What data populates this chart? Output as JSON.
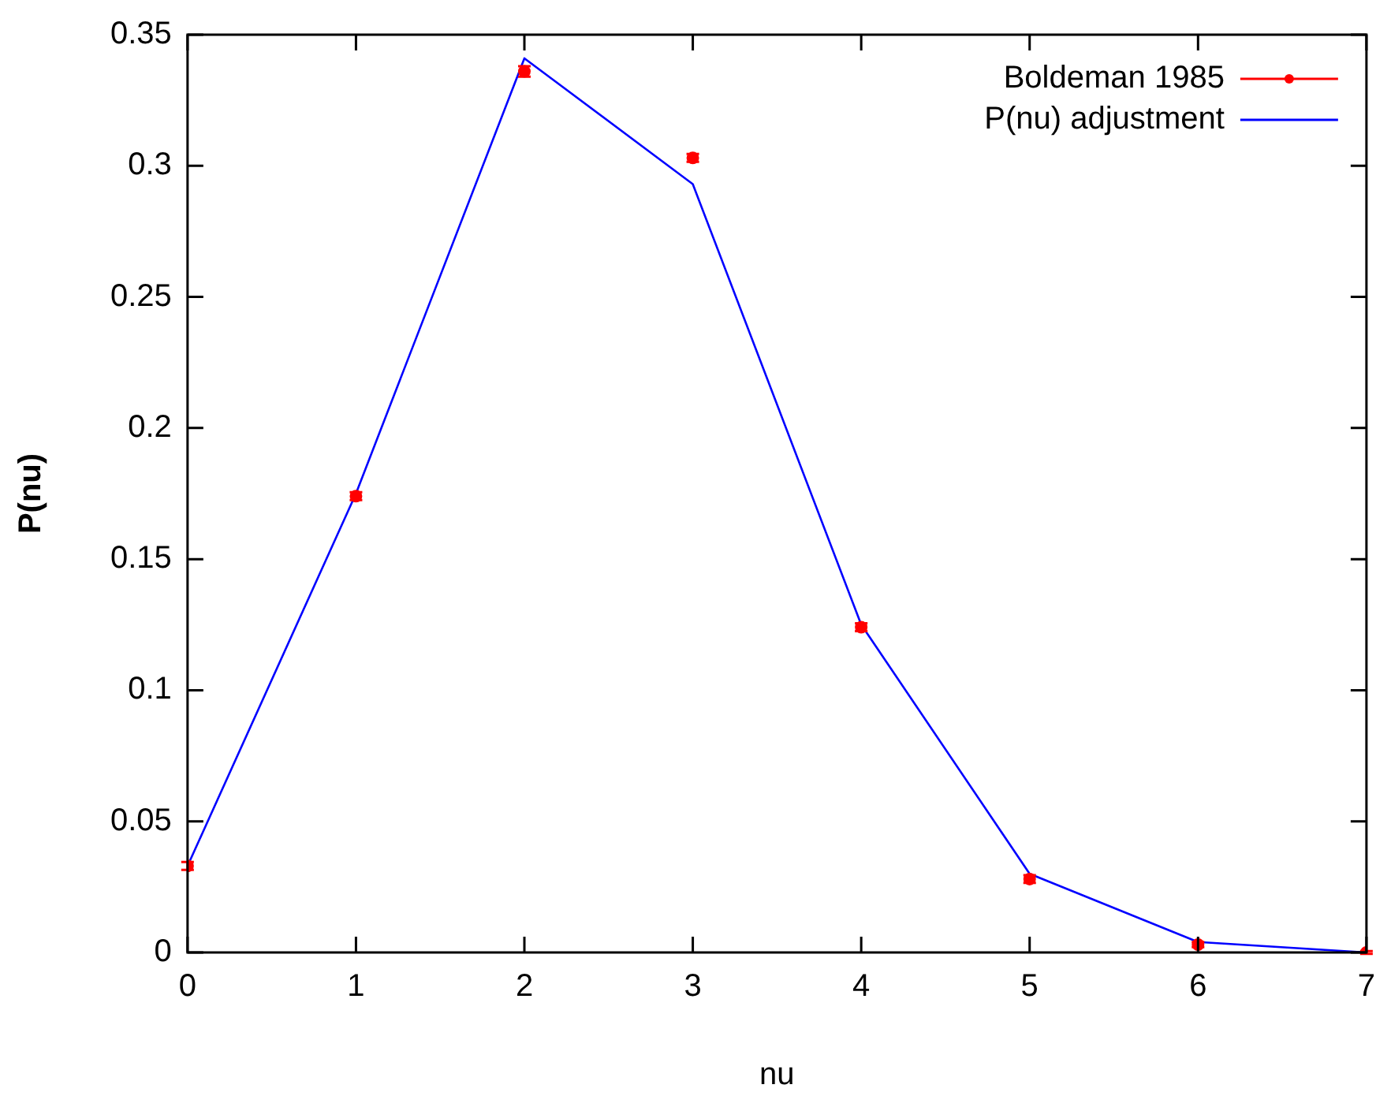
{
  "chart_data": {
    "type": "scatter",
    "xlabel": "nu",
    "ylabel": "P(nu)",
    "xlim": [
      0,
      7
    ],
    "xticks": [
      0,
      1,
      2,
      3,
      4,
      5,
      6,
      7
    ],
    "ylim": [
      0,
      0.35
    ],
    "yticks": [
      0,
      0.05,
      0.1,
      0.15,
      0.2,
      0.25,
      0.3,
      0.35
    ],
    "grid": false,
    "legend": "top right",
    "series": [
      {
        "name": "Boldeman 1985",
        "color": "#ff0000",
        "marker": "circle",
        "x": [
          0,
          1,
          2,
          3,
          4,
          5,
          6,
          7
        ],
        "values": [
          0.033,
          0.174,
          0.336,
          0.303,
          0.124,
          0.028,
          0.003,
          0.0
        ],
        "errors": [
          0.0015,
          0.0015,
          0.002,
          0.0015,
          0.0015,
          0.0015,
          0.001,
          0.0005
        ]
      },
      {
        "name": "P(nu) adjustment",
        "type": "line",
        "color": "#0000ff",
        "marker": "none",
        "line_style": "solid",
        "x": [
          0,
          1,
          2,
          3,
          4,
          5,
          6,
          7
        ],
        "values": [
          0.033,
          0.175,
          0.341,
          0.293,
          0.125,
          0.03,
          0.004,
          0.0
        ]
      }
    ]
  }
}
